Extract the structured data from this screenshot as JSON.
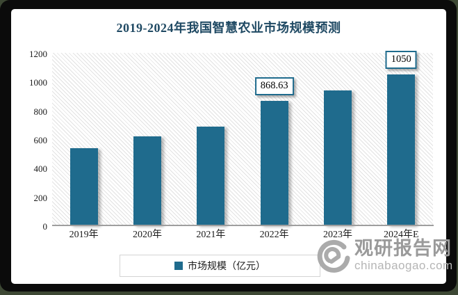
{
  "title": "2019-2024年我国智慧农业市场规模预测",
  "chart_data": {
    "type": "bar",
    "categories": [
      "2019年",
      "2020年",
      "2021年",
      "2022年",
      "2023年",
      "2024年E"
    ],
    "series": [
      {
        "name": "市场规模（亿元）",
        "values": [
          535,
          620,
          685,
          868.63,
          940,
          1050
        ]
      }
    ],
    "data_labels": [
      {
        "category_index": 3,
        "text": "868.63"
      },
      {
        "category_index": 5,
        "text": "1050"
      }
    ],
    "yticks": [
      0,
      200,
      400,
      600,
      800,
      1000,
      1200
    ],
    "ylim": [
      0,
      1200
    ],
    "xlabel": "",
    "ylabel": "",
    "grid": false,
    "legend_position": "bottom",
    "plot_background": "diagonal-hatch"
  },
  "legend": {
    "swatch_icon": "square-swatch",
    "label": "市场规模（亿元）"
  },
  "watermark": {
    "logo_icon": "swirl-logo",
    "name": "观研报告网",
    "domain": "chinabaogao.com"
  },
  "colors": {
    "bar": "#1f6b8d",
    "title": "#1f4963",
    "axis_line": "#9e9e9e",
    "callout_border": "#1f6b8d",
    "watermark_gray": "#a8a8a8"
  }
}
